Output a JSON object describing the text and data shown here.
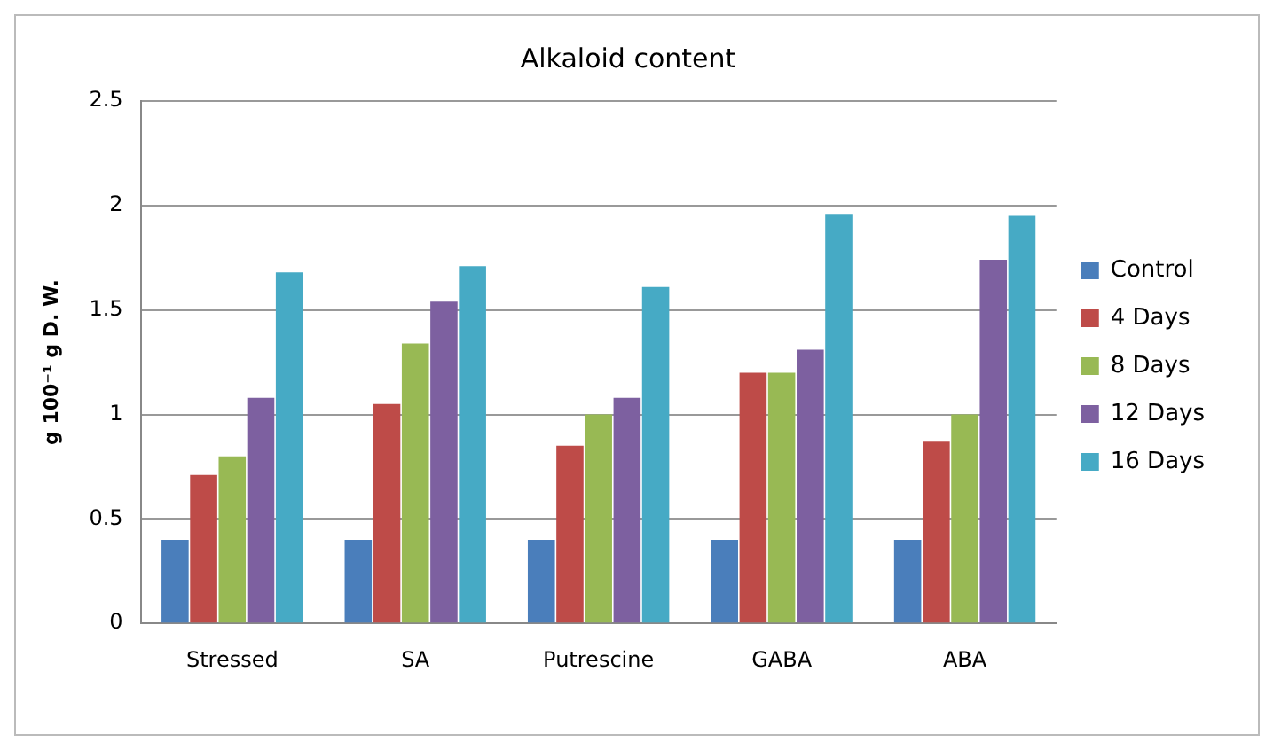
{
  "chart_data": {
    "type": "bar",
    "title": "Alkaloid content",
    "ylabel": "g 100⁻¹ g D. W.",
    "categories": [
      "Stressed",
      "SA",
      "Putrescine",
      "GABA",
      "ABA"
    ],
    "series": [
      {
        "name": "Control",
        "color": "#4a7ebb",
        "values": [
          0.4,
          0.4,
          0.4,
          0.4,
          0.4
        ]
      },
      {
        "name": "4 Days",
        "color": "#be4b48",
        "values": [
          0.71,
          1.05,
          0.85,
          1.2,
          0.87
        ]
      },
      {
        "name": "8 Days",
        "color": "#98b954",
        "values": [
          0.8,
          1.34,
          1.0,
          1.2,
          1.0
        ]
      },
      {
        "name": "12 Days",
        "color": "#7d60a0",
        "values": [
          1.08,
          1.54,
          1.08,
          1.31,
          1.74
        ]
      },
      {
        "name": "16 Days",
        "color": "#46aac5",
        "values": [
          1.68,
          1.71,
          1.61,
          1.96,
          1.95
        ]
      }
    ],
    "ylim": [
      0,
      2.5
    ],
    "yticks": [
      0,
      0.5,
      1,
      1.5,
      2,
      2.5
    ],
    "grid": "y",
    "legend": "right"
  }
}
